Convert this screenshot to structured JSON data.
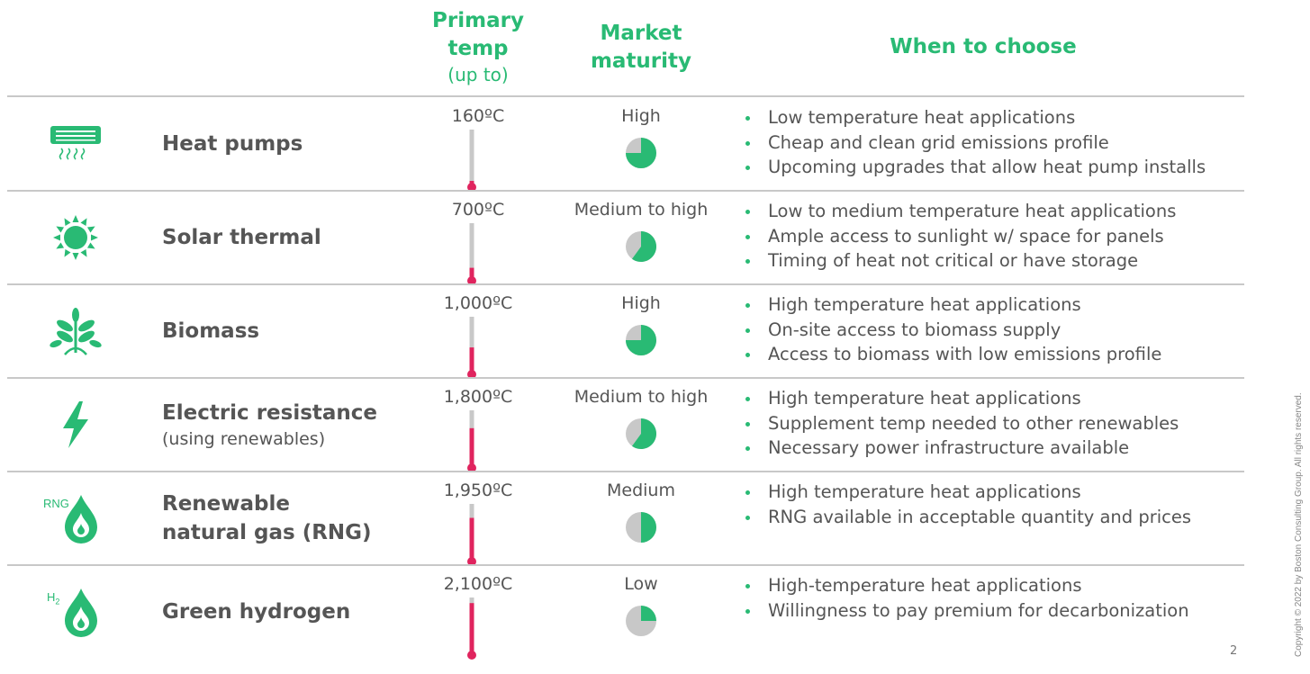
{
  "header": {
    "temp_line1": "Primary",
    "temp_line2": "temp",
    "temp_line3": "(up to)",
    "maturity_line1": "Market",
    "maturity_line2": "maturity",
    "when": "When to choose"
  },
  "colors": {
    "accent_green": "#29ba74",
    "thermometer_red": "#e0245e",
    "thermometer_track": "#c8c8c8",
    "pie_gray": "#c8c8c8",
    "rule_gray": "#c8c8c8",
    "text_gray": "#555555"
  },
  "rows": [
    {
      "icon": "heat-pump-icon",
      "name": "Heat pumps",
      "subtitle": "",
      "temp": "160ºC",
      "temp_fraction": 0.08,
      "maturity": "High",
      "maturity_fraction": 0.75,
      "bullets": [
        "Low temperature heat applications",
        "Cheap and clean grid emissions profile",
        "Upcoming upgrades that allow heat pump installs"
      ]
    },
    {
      "icon": "sun-icon",
      "name": "Solar thermal",
      "subtitle": "",
      "temp": "700ºC",
      "temp_fraction": 0.2,
      "maturity": "Medium to high",
      "maturity_fraction": 0.6,
      "bullets": [
        "Low to medium temperature heat applications",
        "Ample access to sunlight w/ space for panels",
        "Timing of heat not critical or have storage"
      ]
    },
    {
      "icon": "biomass-plant-icon",
      "name": "Biomass",
      "subtitle": "",
      "temp": "1,000ºC",
      "temp_fraction": 0.45,
      "maturity": "High",
      "maturity_fraction": 0.75,
      "bullets": [
        "High temperature heat applications",
        "On-site access to biomass supply",
        "Access to biomass with low emissions profile"
      ]
    },
    {
      "icon": "lightning-bolt-icon",
      "name": "Electric resistance",
      "subtitle": "(using renewables)",
      "temp": "1,800ºC",
      "temp_fraction": 0.68,
      "maturity": "Medium to high",
      "maturity_fraction": 0.6,
      "bullets": [
        "High temperature heat applications",
        "Supplement temp needed to other renewables",
        "Necessary power infrastructure available"
      ]
    },
    {
      "icon": "rng-flame-icon",
      "icon_label": "RNG",
      "name": "Renewable natural gas (RNG)",
      "subtitle": "",
      "temp": "1,950ºC",
      "temp_fraction": 0.75,
      "maturity": "Medium",
      "maturity_fraction": 0.5,
      "bullets": [
        "High temperature heat applications",
        "RNG available in acceptable quantity and prices"
      ]
    },
    {
      "icon": "hydrogen-flame-icon",
      "icon_label": "H2",
      "name": "Green hydrogen",
      "subtitle": "",
      "temp": "2,100ºC",
      "temp_fraction": 0.9,
      "maturity": "Low",
      "maturity_fraction": 0.25,
      "bullets": [
        "High-temperature heat applications",
        "Willingness to pay premium for decarbonization"
      ]
    }
  ],
  "footer": {
    "copyright": "Copyright © 2022 by Boston Consulting Group. All rights reserved.",
    "page_number": "2"
  }
}
